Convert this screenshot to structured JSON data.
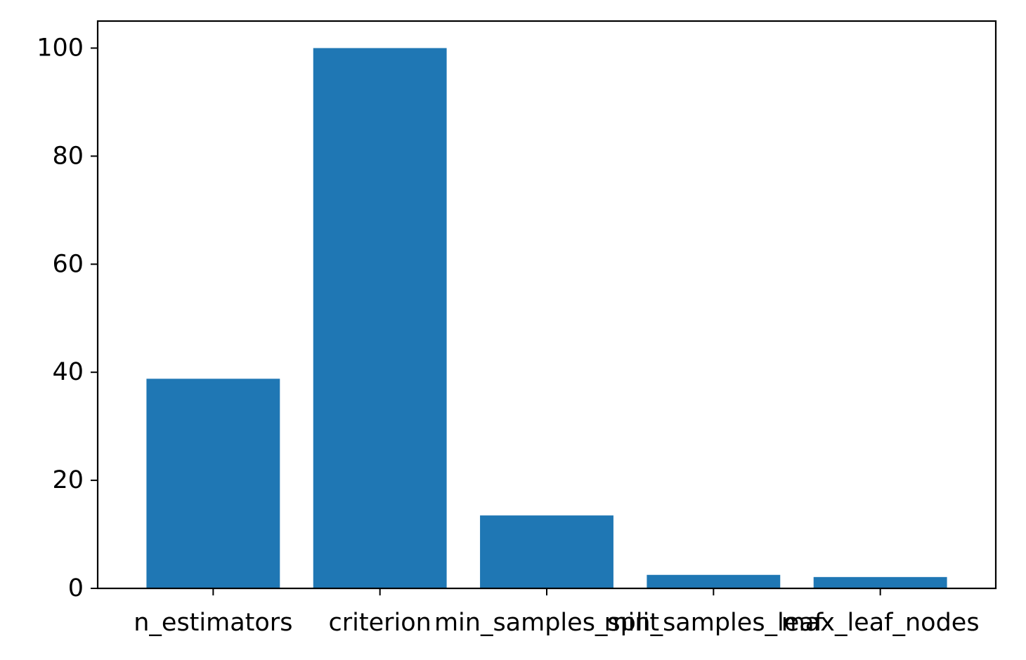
{
  "chart_data": {
    "type": "bar",
    "categories": [
      "n_estimators",
      "criterion",
      "min_samples_split",
      "min_samples_leaf",
      "max_leaf_nodes"
    ],
    "values": [
      38.8,
      100.0,
      13.5,
      2.5,
      2.1
    ],
    "title": "",
    "xlabel": "",
    "ylabel": "",
    "ylim": [
      0,
      105
    ],
    "yticks": [
      0,
      20,
      40,
      60,
      80,
      100
    ],
    "bar_color": "#1f77b4",
    "grid": false,
    "legend": "none"
  }
}
